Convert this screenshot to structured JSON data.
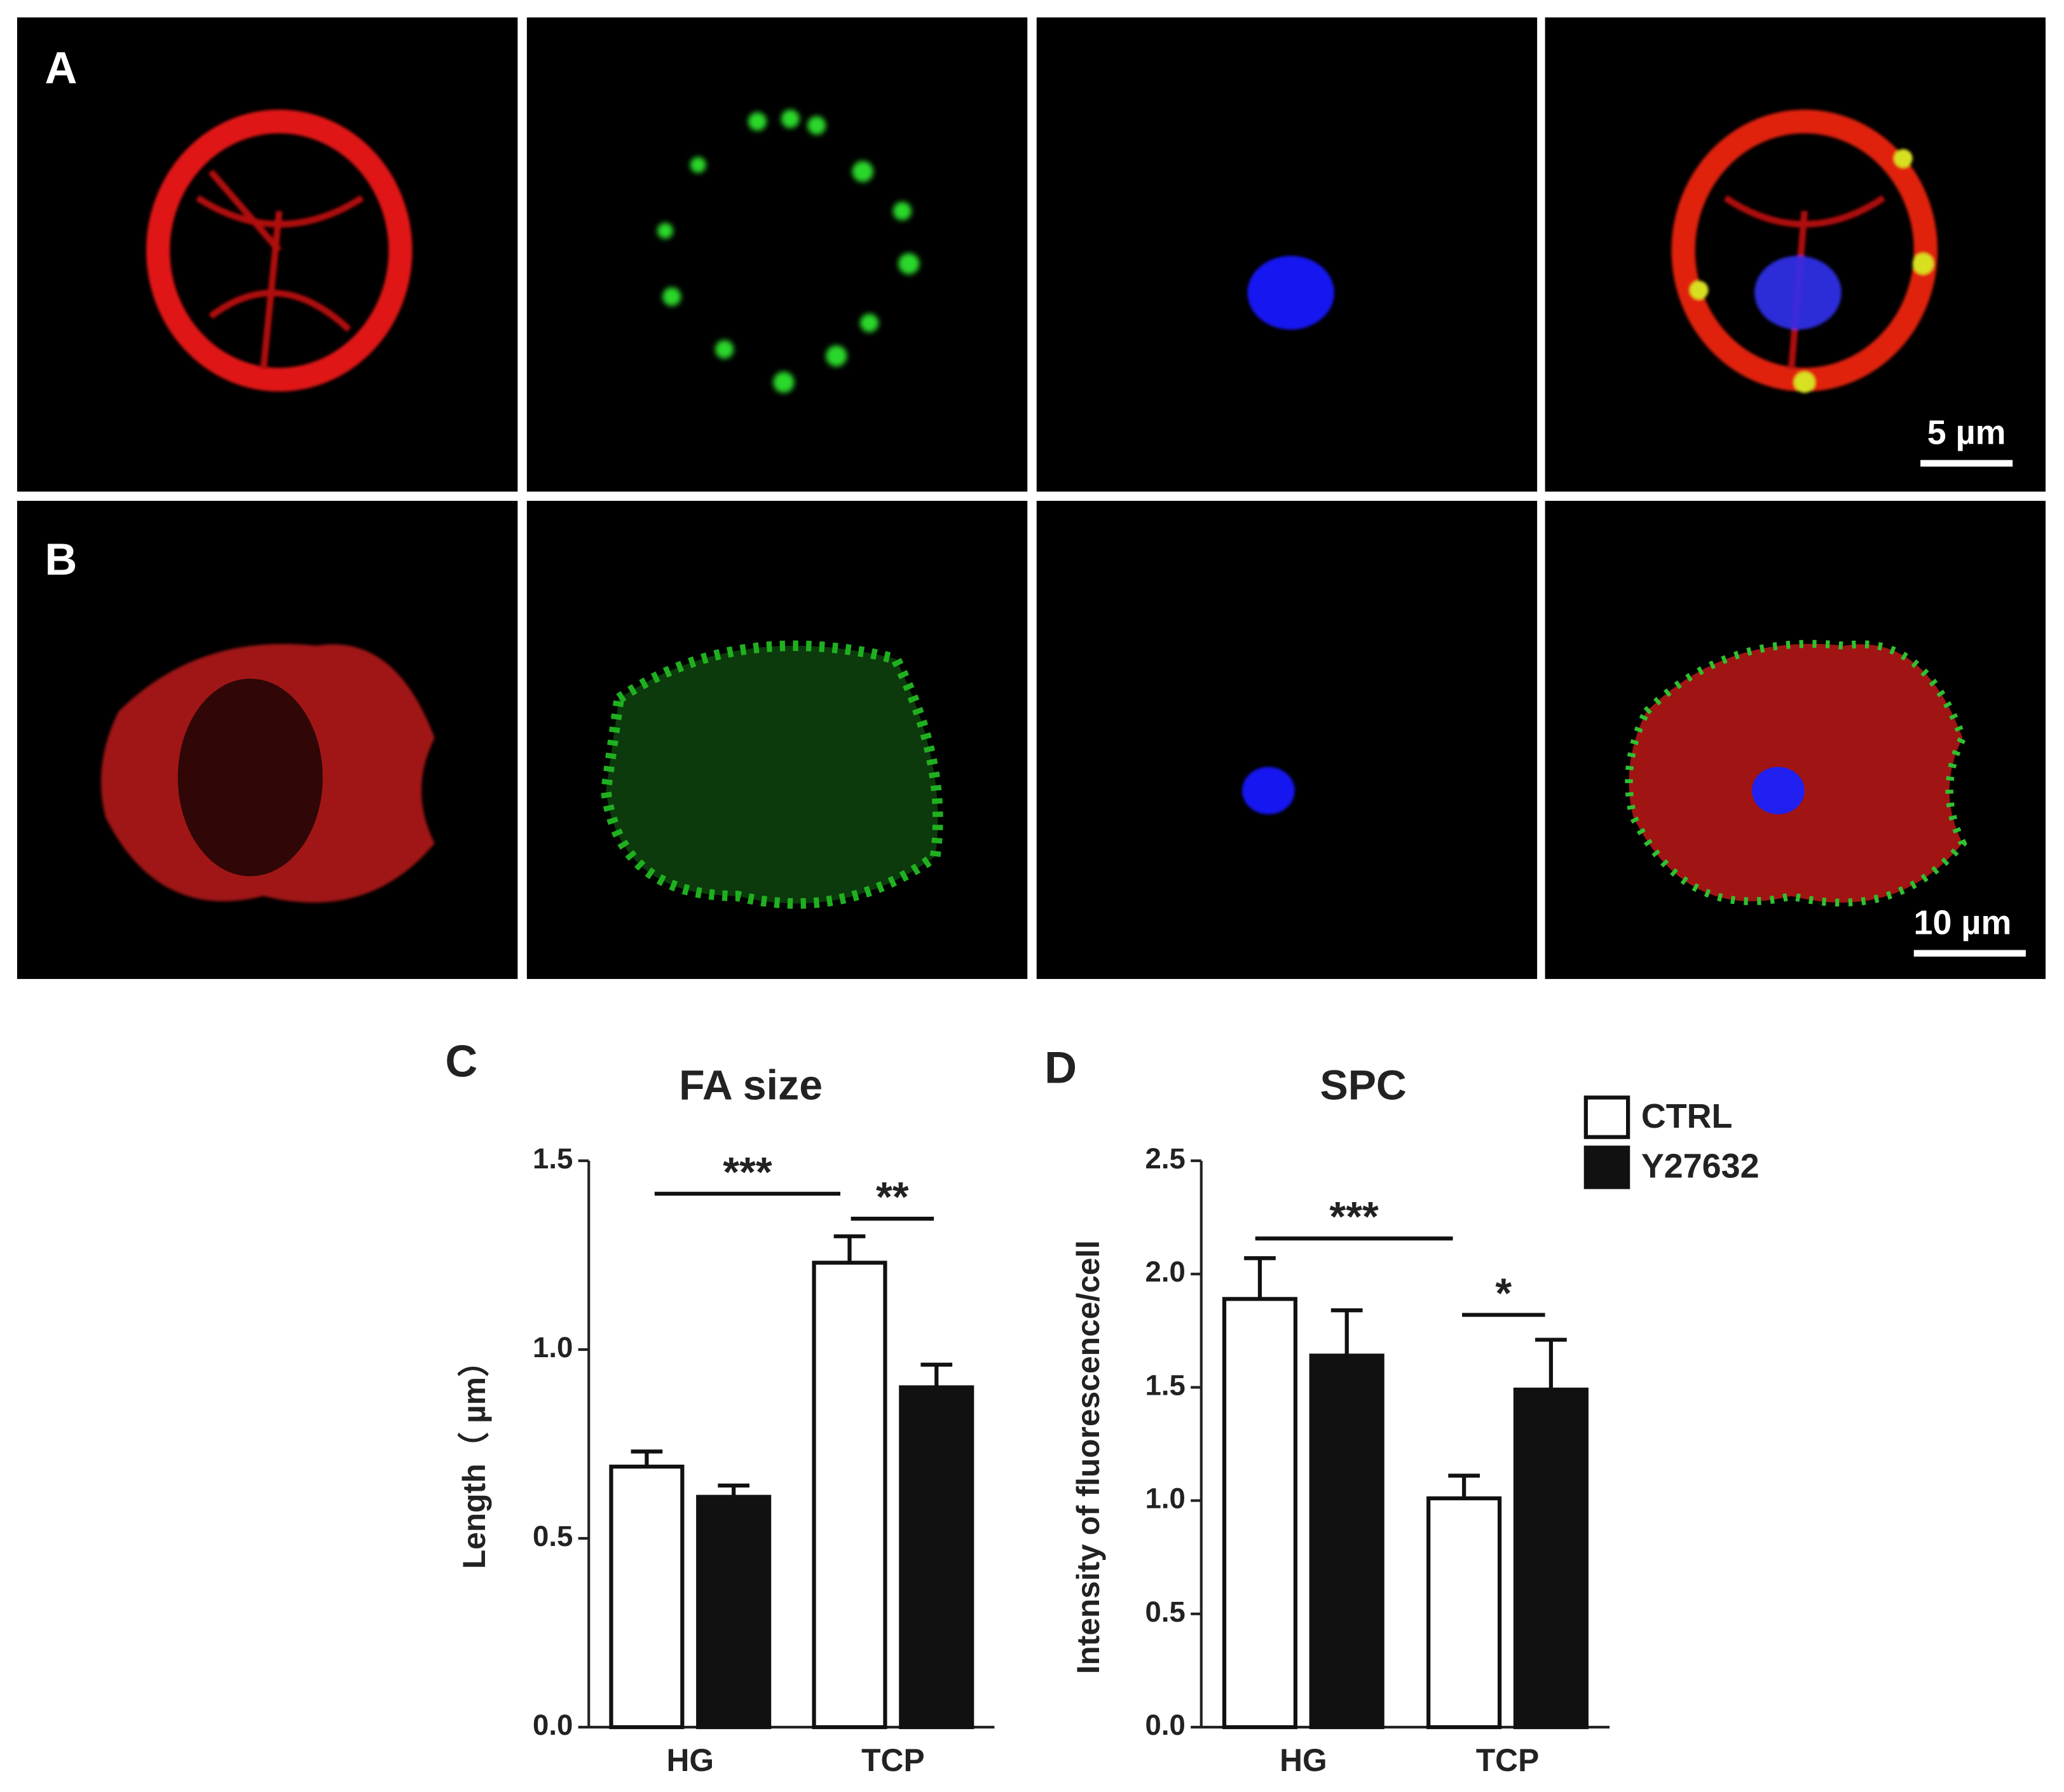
{
  "figure": {
    "panel_labels": [
      "A",
      "B",
      "C",
      "D"
    ],
    "scale_bars": [
      "5 µm",
      "10 µm"
    ]
  },
  "chart_data": [
    {
      "type": "bar",
      "title": "FA size",
      "y_label": "Length（ µm）",
      "categories": [
        "HG",
        "TCP"
      ],
      "series": [
        {
          "color": "#ffffff",
          "values": [
            0.69,
            1.23
          ],
          "errors": [
            0.04,
            0.07
          ]
        },
        {
          "color": "#111111",
          "values": [
            0.61,
            0.9
          ],
          "errors": [
            0.03,
            0.06
          ]
        }
      ],
      "ylim": [
        0,
        1.5
      ],
      "yticks": [
        {
          "value": 0,
          "label": "0.0"
        },
        {
          "value": 0.5,
          "label": "0.5"
        },
        {
          "value": 1,
          "label": "1.0"
        },
        {
          "value": 1.5,
          "label": "1.5"
        }
      ],
      "annotations": [
        "***",
        "**"
      ],
      "legend": false
    },
    {
      "type": "bar",
      "title": "SPC",
      "y_label": "Intensity of fluorescence/cell",
      "categories": [
        "HG",
        "TCP"
      ],
      "series": [
        {
          "name": "CTRL",
          "color": "#ffffff",
          "values": [
            1.89,
            1.01
          ],
          "errors": [
            0.18,
            0.1
          ]
        },
        {
          "name": "Y27632",
          "color": "#111111",
          "values": [
            1.64,
            1.49
          ],
          "errors": [
            0.2,
            0.22
          ]
        }
      ],
      "ylim": [
        0,
        2.5
      ],
      "yticks": [
        {
          "value": 0,
          "label": "0.0"
        },
        {
          "value": 0.5,
          "label": "0.5"
        },
        {
          "value": 1,
          "label": "1.0"
        },
        {
          "value": 1.5,
          "label": "1.5"
        },
        {
          "value": 2,
          "label": "2.0"
        },
        {
          "value": 2.5,
          "label": "2.5"
        }
      ],
      "annotations": [
        "***",
        "*"
      ],
      "legend": true
    }
  ]
}
